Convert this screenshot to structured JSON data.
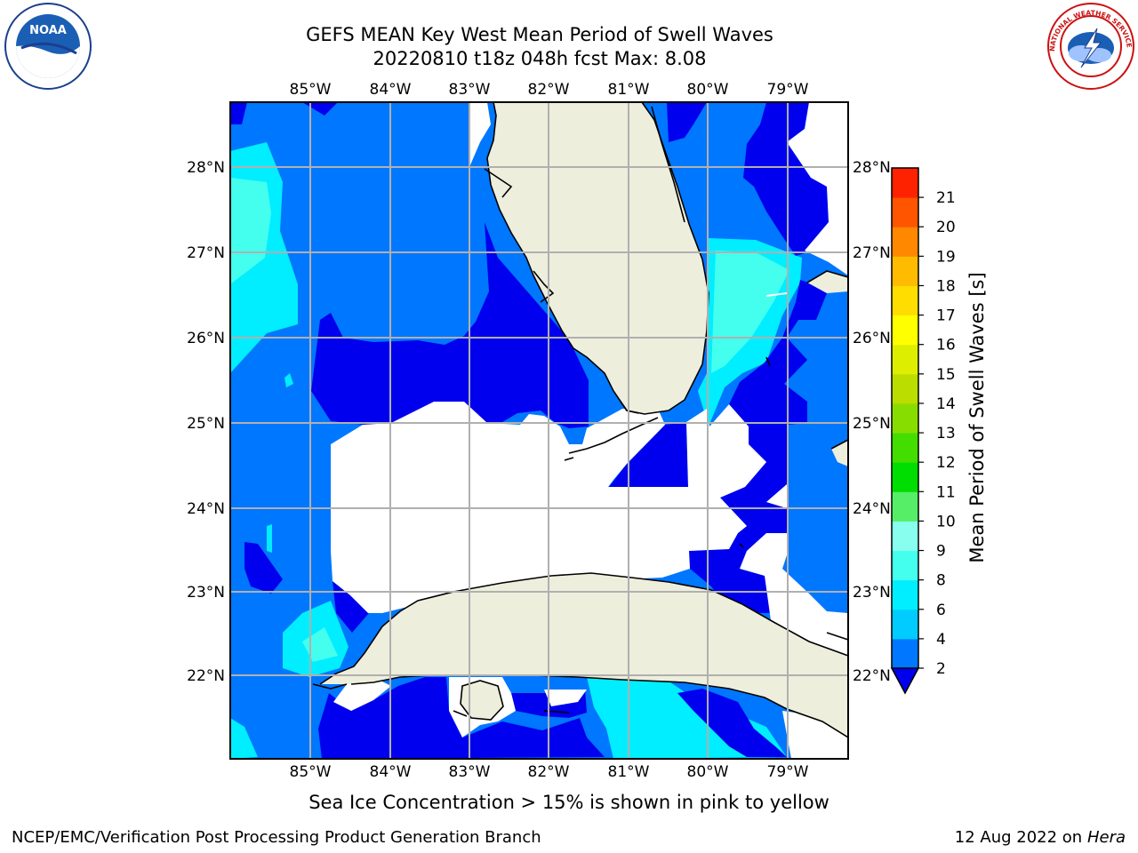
{
  "title": {
    "line1": "GEFS MEAN Key West Mean Period of Swell Waves",
    "line2": "20220810 t18z 048h fcst   Max: 8.08"
  },
  "map": {
    "lon_labels": [
      "85°W",
      "84°W",
      "83°W",
      "82°W",
      "81°W",
      "80°W",
      "79°W"
    ],
    "lat_labels": [
      "28°N",
      "27°N",
      "26°N",
      "25°N",
      "24°N",
      "23°N",
      "22°N"
    ],
    "colors": {
      "land": "#eeeedd",
      "no_data": "#ffffff",
      "band_0_2": "#0000ee",
      "band_2_4": "#0077ff",
      "band_4_6": "#00eeff",
      "band_6_8": "#44ffee",
      "band_8_9": "#88ffee",
      "grid": "#b0b0b0"
    }
  },
  "colorbar": {
    "label": "Mean Period of Swell Waves [s]",
    "ticks": [
      "2",
      "4",
      "6",
      "8",
      "9",
      "10",
      "11",
      "12",
      "13",
      "14",
      "15",
      "16",
      "17",
      "18",
      "19",
      "20",
      "21"
    ],
    "colors": [
      "#0077ff",
      "#00ccff",
      "#00eeff",
      "#44ffee",
      "#88ffee",
      "#55ee66",
      "#00dd00",
      "#44dd00",
      "#88dd00",
      "#bbdd00",
      "#ddee00",
      "#ffff00",
      "#ffdd00",
      "#ffbb00",
      "#ff8800",
      "#ff5500",
      "#ff2200"
    ],
    "extend_color": "#0000ee"
  },
  "bottom_note": "Sea Ice Concentration > 15% is shown in pink to yellow",
  "footer": {
    "credit": "NCEP/EMC/Verification Post Processing Product Generation Branch",
    "date": "12 Aug 2022 on",
    "machine": "Hera"
  },
  "logos": {
    "noaa": "NOAA",
    "nws": "NATIONAL WEATHER SERVICE"
  }
}
